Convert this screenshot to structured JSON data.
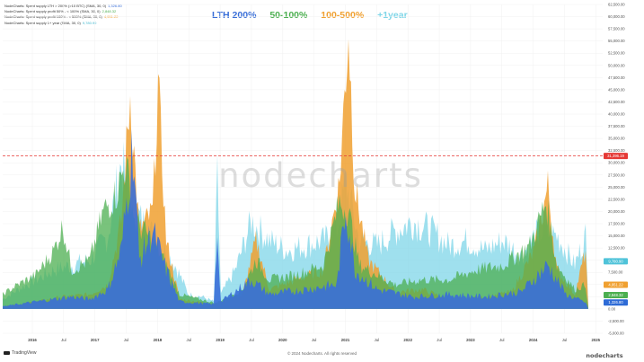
{
  "chart_data": {
    "type": "area",
    "series": [
      {
        "name": "NodeCharts: Spent supply LTH > 200% (>10 BTC) (SMA, 30, 0)",
        "last_value": "1,326.80",
        "color": "#3a6fd8"
      },
      {
        "name": "NodeCharts: Spent supply profit 50% - < 100% (SMA, 30, 0)",
        "last_value": "2,848.32",
        "color": "#4caf50"
      },
      {
        "name": "NodeCharts: Spent supply profit 100% - < 500% (SMA, 30, 0)",
        "last_value": "4,951.22",
        "color": "#f0a030"
      },
      {
        "name": "NodeCharts: Spent supply 1+ year (SMA, 30, 0)",
        "last_value": "9,780.90",
        "color": "#7fd6e8"
      }
    ],
    "headline_labels": [
      {
        "text": "LTH 200%",
        "color": "#3a6fd8"
      },
      {
        "text": "50-100%",
        "color": "#4caf50"
      },
      {
        "text": "100-500%",
        "color": "#f0a030"
      },
      {
        "text": "+1year",
        "color": "#7fd6e8"
      }
    ],
    "y_ticks": [
      "62,500.00",
      "60,000.00",
      "57,500.00",
      "55,000.00",
      "52,500.00",
      "50,000.00",
      "47,500.00",
      "45,000.00",
      "42,500.00",
      "40,000.00",
      "37,500.00",
      "35,000.00",
      "32,500.00",
      "30,000.00",
      "27,500.00",
      "25,000.00",
      "22,500.00",
      "20,000.00",
      "17,500.00",
      "15,000.00",
      "12,500.00",
      "10,000.00",
      "7,500.00",
      "5,000.00",
      "2,500.00",
      "0.00",
      "-2,500.00",
      "-5,000.00"
    ],
    "ylim": [
      -5000,
      62500
    ],
    "x_ticks": [
      "2016",
      "Jul",
      "2017",
      "Jul",
      "2018",
      "Jul",
      "2019",
      "Jul",
      "2020",
      "Jul",
      "2021",
      "Jul",
      "2022",
      "Jul",
      "2023",
      "Jul",
      "2024",
      "Jul",
      "2025"
    ],
    "reference_line": {
      "value": 31396.19,
      "label": "31,396.19",
      "color": "#e53935"
    },
    "last_value_tags": [
      {
        "label": "9,780.90",
        "value": 9780.9,
        "color": "#4fc3d9"
      },
      {
        "label": "4,951.22",
        "value": 4951.22,
        "color": "#f0a030"
      },
      {
        "label": "2,848.32",
        "value": 2848.32,
        "color": "#4caf50"
      },
      {
        "label": "1,326.80",
        "value": 1326.8,
        "color": "#2e6bd6"
      }
    ],
    "watermark": "nodecharts"
  },
  "footer": {
    "copyright": "© 2024 Nodecharts. All rights reserved",
    "tradingview": "TradingView"
  },
  "brand": {
    "logo_text": "nodecharts"
  }
}
